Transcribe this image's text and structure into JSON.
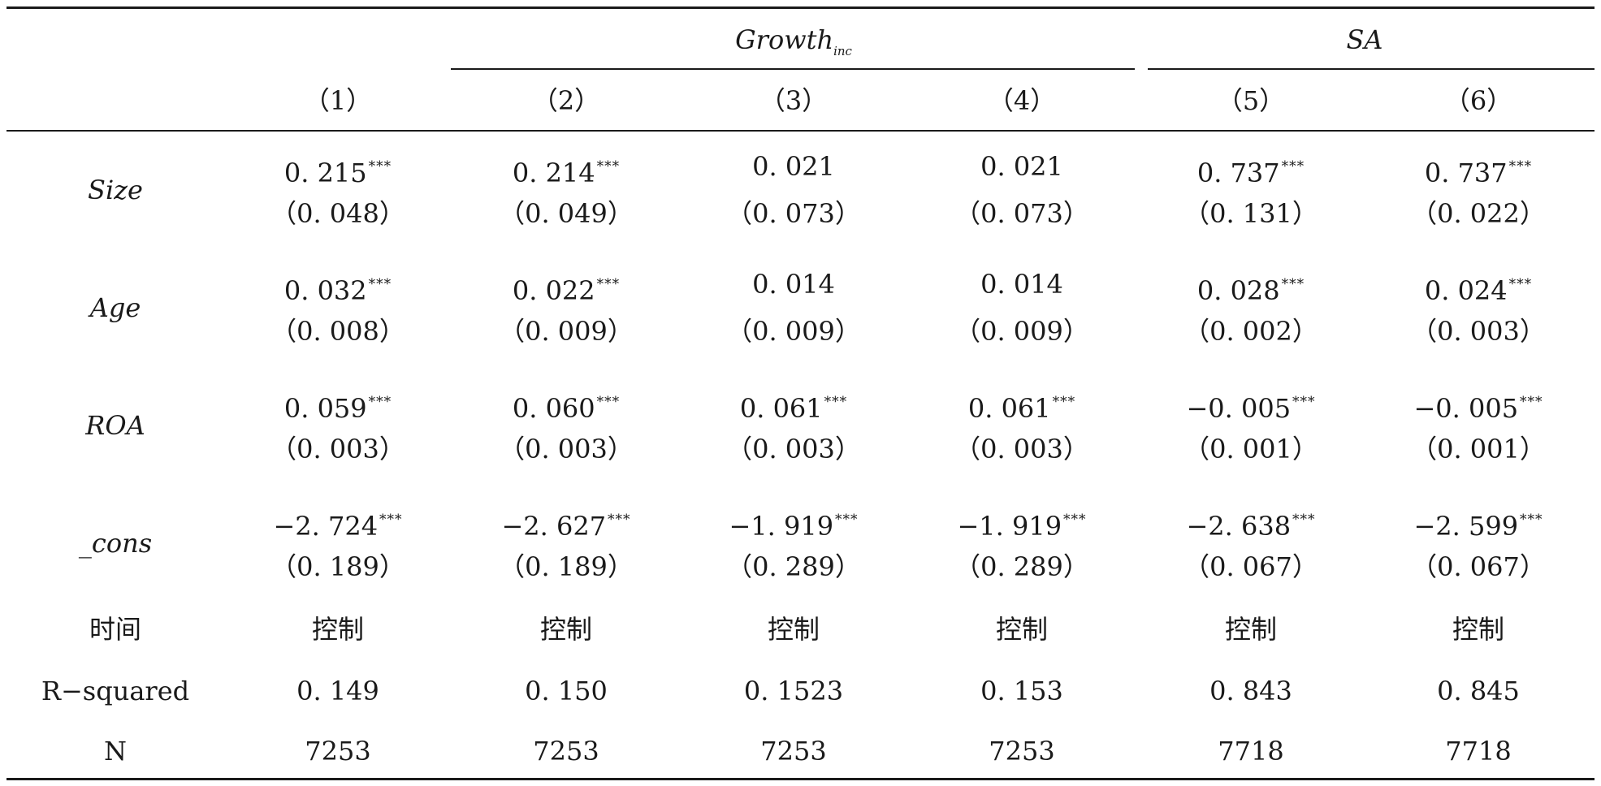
{
  "groups": [
    {
      "main": "Growth",
      "sub": "inc"
    },
    {
      "main": "SA",
      "sub": ""
    }
  ],
  "columns": [
    "（1）",
    "（2）",
    "（3）",
    "（4）",
    "（5）",
    "（6）"
  ],
  "rows": [
    {
      "label": "Size",
      "coef": [
        "0. 215",
        "0. 214",
        "0. 021",
        "0. 021",
        "0. 737",
        "0. 737"
      ],
      "stars": [
        "***",
        "***",
        "",
        "",
        "***",
        "***"
      ],
      "se": [
        "（0. 048）",
        "（0. 049）",
        "（0. 073）",
        "（0. 073）",
        "（0. 131）",
        "（0. 022）"
      ]
    },
    {
      "label": "Age",
      "coef": [
        "0. 032",
        "0. 022",
        "0. 014",
        "0. 014",
        "0. 028",
        "0. 024"
      ],
      "stars": [
        "***",
        "***",
        "",
        "",
        "***",
        "***"
      ],
      "se": [
        "（0. 008）",
        "（0. 009）",
        "（0. 009）",
        "（0. 009）",
        "（0. 002）",
        "（0. 003）"
      ]
    },
    {
      "label": "ROA",
      "coef": [
        "0. 059",
        "0. 060",
        "0. 061",
        "0. 061",
        "−0. 005",
        "−0. 005"
      ],
      "stars": [
        "***",
        "***",
        "***",
        "***",
        "***",
        "***"
      ],
      "se": [
        "（0. 003）",
        "（0. 003）",
        "（0. 003）",
        "（0. 003）",
        "（0. 001）",
        "（0. 001）"
      ]
    },
    {
      "label": "_cons",
      "coef": [
        "−2. 724",
        "−2. 627",
        "−1. 919",
        "−1. 919",
        "−2. 638",
        "−2. 599"
      ],
      "stars": [
        "***",
        "***",
        "***",
        "***",
        "***",
        "***"
      ],
      "se": [
        "（0. 189）",
        "（0. 189）",
        "（0. 289）",
        "（0. 289）",
        "（0. 067）",
        "（0. 067）"
      ]
    }
  ],
  "footer": [
    {
      "label": "时间",
      "values": [
        "控制",
        "控制",
        "控制",
        "控制",
        "控制",
        "控制"
      ]
    },
    {
      "label": "R−squared",
      "values": [
        "0. 149",
        "0. 150",
        "0. 1523",
        "0. 153",
        "0. 843",
        "0. 845"
      ]
    },
    {
      "label": "N",
      "values": [
        "7253",
        "7253",
        "7253",
        "7253",
        "7718",
        "7718"
      ]
    }
  ]
}
